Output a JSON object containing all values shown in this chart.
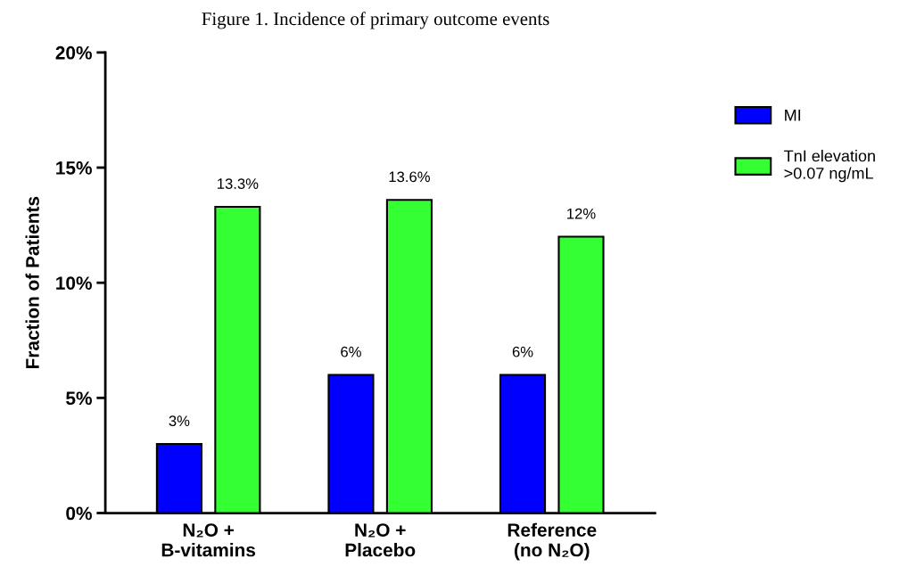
{
  "chart_data": {
    "type": "bar",
    "title": "Figure 1. Incidence of primary outcome events",
    "ylabel": "Fraction of Patients",
    "categories": [
      "N₂O +\nB-vitamins",
      "N₂O +\nPlacebo",
      "Reference\n(no N₂O)"
    ],
    "series": [
      {
        "name": "MI",
        "color": "#0000ff",
        "values": [
          3,
          6,
          6
        ],
        "value_labels": [
          "3%",
          "6%",
          "6%"
        ]
      },
      {
        "name": "TnI elevation\n>0.07 ng/mL",
        "color": "#33ff33",
        "values": [
          13.3,
          13.6,
          12
        ],
        "value_labels": [
          "13.3%",
          "13.6%",
          "12%"
        ]
      }
    ],
    "ylim": [
      0,
      20
    ],
    "yticks": [
      {
        "value": 0,
        "label": "0%"
      },
      {
        "value": 5,
        "label": "5%"
      },
      {
        "value": 10,
        "label": "10%"
      },
      {
        "value": 15,
        "label": "15%"
      },
      {
        "value": 20,
        "label": "20%"
      }
    ],
    "grid": false,
    "legend": "right"
  }
}
